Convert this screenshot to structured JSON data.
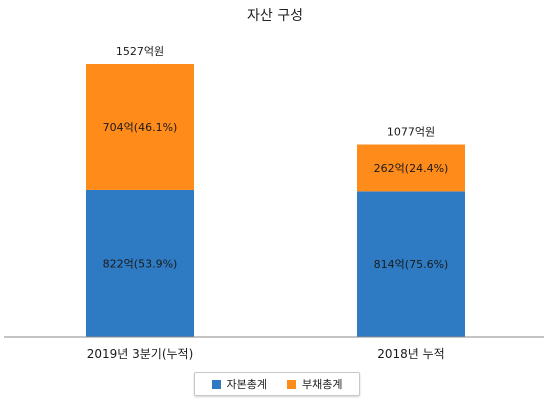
{
  "chart_data": {
    "type": "bar",
    "stacked": true,
    "title": "자산 구성",
    "categories": [
      "2019년 3분기(누적)",
      "2018년 누적"
    ],
    "series": [
      {
        "name": "자본총계",
        "color": "#2e7bc4",
        "values": [
          822,
          814
        ],
        "labels": [
          "822억(53.9%)",
          "814억(75.6%)"
        ]
      },
      {
        "name": "부채총계",
        "color": "#ff8c1a",
        "values": [
          704,
          262
        ],
        "labels": [
          "704억(46.1%)",
          "262억(24.4%)"
        ]
      }
    ],
    "totals": [
      1527,
      1077
    ],
    "total_labels": [
      "1527억원",
      "1077억원"
    ],
    "ylim": [
      0,
      1600
    ],
    "grid": false,
    "legend_position": "bottom"
  }
}
